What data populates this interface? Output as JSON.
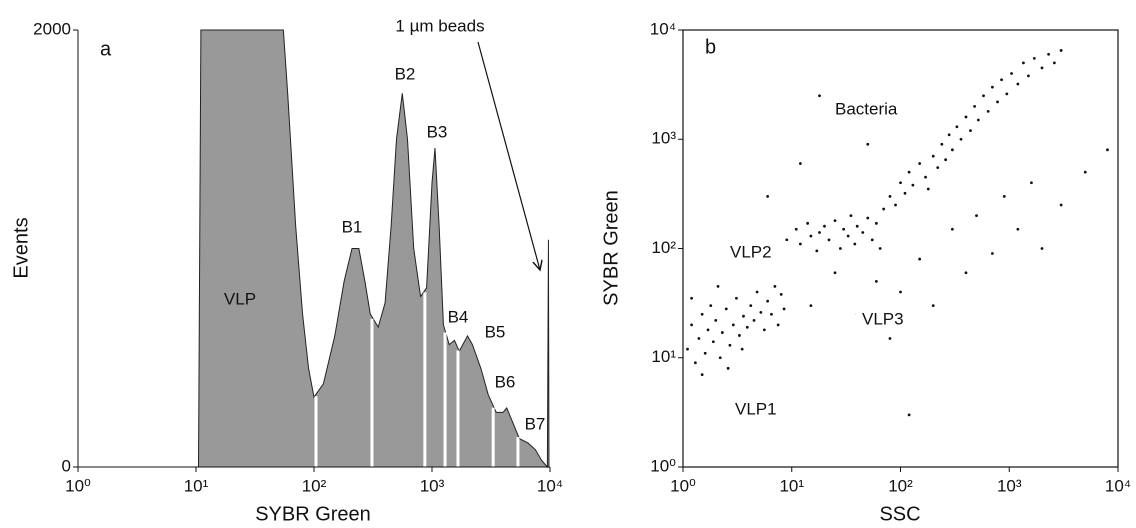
{
  "chart_data": [
    {
      "type": "area",
      "panel_label": "a",
      "x_label": "SYBR Green",
      "y_label": "Events",
      "log_x": true,
      "color": "#999999",
      "x": [
        10.5,
        11,
        55,
        60,
        70,
        80,
        90,
        100,
        120,
        150,
        180,
        210,
        240,
        270,
        300,
        350,
        400,
        450,
        500,
        560,
        620,
        700,
        800,
        900,
        1000,
        1060,
        1150,
        1250,
        1400,
        1550,
        1700,
        2000,
        2200,
        2600,
        3000,
        3500,
        4000,
        4300,
        4700,
        5500,
        6500,
        7500,
        8500,
        9500,
        9700,
        9800
      ],
      "values": [
        0,
        2000,
        2000,
        1700,
        1100,
        700,
        450,
        320,
        380,
        600,
        850,
        1000,
        1000,
        850,
        700,
        640,
        750,
        1100,
        1500,
        1710,
        1500,
        1000,
        780,
        820,
        1300,
        1460,
        1100,
        650,
        560,
        580,
        530,
        600,
        560,
        450,
        330,
        250,
        250,
        270,
        220,
        130,
        110,
        80,
        30,
        0,
        1040,
        0
      ],
      "gates": [
        104,
        310,
        870,
        1290,
        1660,
        3300,
        5350
      ],
      "annotations": [
        "VLP",
        "B1",
        "B2",
        "B3",
        "B4",
        "B5",
        "B6",
        "B7",
        "1 µm beads"
      ],
      "xlim": [
        1,
        10000
      ],
      "xticks": [
        {
          "value": 1,
          "label": "10⁰"
        },
        {
          "value": 10,
          "label": "10¹"
        },
        {
          "value": 100,
          "label": "10²"
        },
        {
          "value": 1000,
          "label": "10³"
        },
        {
          "value": 10000,
          "label": "10⁴"
        }
      ],
      "ylim": [
        0,
        2000
      ],
      "yticks": [
        0,
        2000
      ]
    },
    {
      "type": "scatter",
      "panel_label": "b",
      "x_label": "SSC",
      "y_label": "SYBR Green",
      "log_x": true,
      "log_y": true,
      "color": "#111111",
      "x": [
        1.1,
        1.2,
        1.3,
        1.4,
        1.5,
        1.6,
        1.7,
        1.8,
        1.9,
        2,
        2.2,
        2.3,
        2.5,
        2.7,
        2.9,
        3.1,
        3.3,
        3.6,
        3.9,
        4.2,
        4.5,
        4.8,
        5.2,
        5.6,
        6,
        6.5,
        7,
        7.5,
        8,
        8.5,
        1.2,
        1.5,
        2.1,
        2.6,
        3.5,
        9,
        10,
        11,
        12,
        14,
        15,
        17,
        18,
        20,
        22,
        25,
        28,
        30,
        33,
        35,
        38,
        40,
        45,
        50,
        55,
        60,
        65,
        70,
        80,
        90,
        100,
        110,
        120,
        130,
        150,
        170,
        180,
        200,
        220,
        240,
        260,
        280,
        300,
        330,
        360,
        400,
        440,
        480,
        520,
        580,
        640,
        700,
        780,
        850,
        950,
        1050,
        1200,
        1350,
        1500,
        1700,
        2000,
        2300,
        2600,
        3000,
        15,
        25,
        40,
        60,
        80,
        100,
        150,
        200,
        300,
        400,
        500,
        700,
        900,
        1200,
        1600,
        2000,
        3000,
        5000,
        8000,
        18,
        120,
        6,
        12,
        50
      ],
      "values": [
        12,
        20,
        9,
        15,
        25,
        11,
        18,
        30,
        14,
        22,
        10,
        17,
        28,
        13,
        20,
        35,
        16,
        24,
        19,
        30,
        22,
        40,
        26,
        18,
        33,
        25,
        45,
        20,
        38,
        28,
        35,
        7,
        45,
        8,
        12,
        120,
        90,
        150,
        110,
        170,
        130,
        95,
        140,
        160,
        120,
        180,
        100,
        150,
        130,
        200,
        110,
        160,
        140,
        190,
        120,
        170,
        100,
        230,
        300,
        250,
        400,
        320,
        500,
        380,
        600,
        450,
        350,
        700,
        550,
        900,
        650,
        1100,
        800,
        1300,
        1000,
        1600,
        1200,
        2000,
        1500,
        2500,
        1800,
        3000,
        2200,
        3500,
        2600,
        4000,
        3200,
        5000,
        3800,
        5500,
        4500,
        6000,
        5000,
        6500,
        30,
        60,
        25,
        50,
        15,
        40,
        80,
        30,
        150,
        60,
        200,
        90,
        300,
        150,
        400,
        100,
        250,
        500,
        800,
        2500,
        3,
        300,
        600,
        900
      ],
      "annotations": [
        "Bacteria",
        "VLP2",
        "VLP3",
        "VLP1"
      ],
      "xlim": [
        1,
        10000
      ],
      "xticks": [
        {
          "value": 1,
          "label": "10⁰"
        },
        {
          "value": 10,
          "label": "10¹"
        },
        {
          "value": 100,
          "label": "10²"
        },
        {
          "value": 1000,
          "label": "10³"
        },
        {
          "value": 10000,
          "label": "10⁴"
        }
      ],
      "ylim": [
        1,
        10000
      ],
      "yticks": [
        {
          "value": 1,
          "label": "10⁰"
        },
        {
          "value": 10,
          "label": "10¹"
        },
        {
          "value": 100,
          "label": "10²"
        },
        {
          "value": 1000,
          "label": "10³"
        },
        {
          "value": 10000,
          "label": "10⁴"
        }
      ]
    }
  ]
}
